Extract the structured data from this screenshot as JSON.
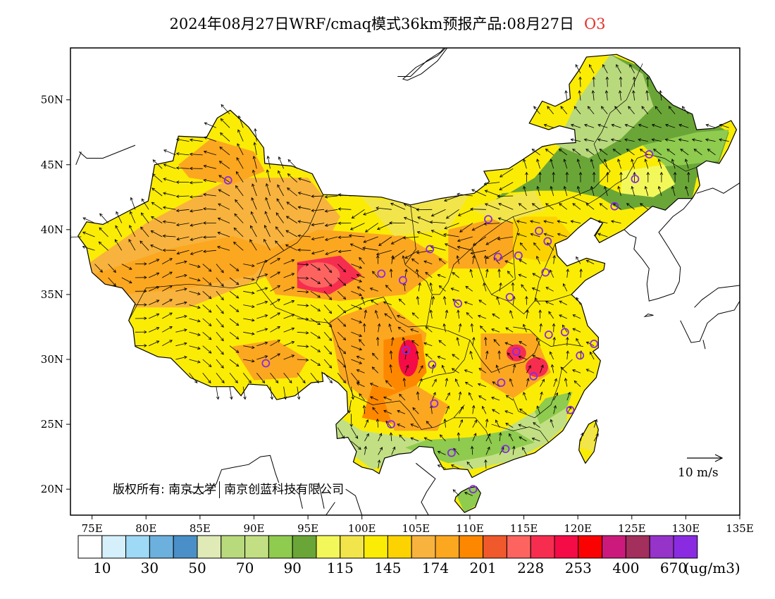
{
  "title": {
    "text": "2024年08月27日WRF/cmaq模式36km预报产品:08月27日",
    "species": "O3",
    "species_color": "#e8302a"
  },
  "map": {
    "lon_ticks": [
      "75E",
      "80E",
      "85E",
      "90E",
      "95E",
      "100E",
      "105E",
      "110E",
      "115E",
      "120E",
      "125E",
      "130E",
      "135E"
    ],
    "lat_ticks": [
      "20N",
      "25N",
      "30N",
      "35N",
      "40N",
      "45N",
      "50N"
    ],
    "lon_range": [
      73,
      135
    ],
    "lat_range": [
      18,
      54
    ]
  },
  "copyright": {
    "label": "版权所有:",
    "org1": "南京大学",
    "org2": "南京创蓝科技有限公司"
  },
  "wind_reference": {
    "label": "10 m/s",
    "speed": 10
  },
  "colorbar": {
    "colors": [
      "#ffffff",
      "#d5effb",
      "#9ed9f5",
      "#6cb0dd",
      "#4a8fc7",
      "#dfeab7",
      "#b9d97d",
      "#c2e083",
      "#8ecb4e",
      "#6aa637",
      "#f3f85a",
      "#f2e54b",
      "#fbec05",
      "#fcd300",
      "#f8b33e",
      "#fca720",
      "#fd8800",
      "#f0592b",
      "#fd6460",
      "#f72d4f",
      "#f50b46",
      "#fa0202",
      "#cb1a7c",
      "#a32f5d",
      "#9633c9",
      "#8a2be2"
    ],
    "labels": [
      "10",
      "30",
      "50",
      "70",
      "90",
      "115",
      "145",
      "174",
      "201",
      "228",
      "253",
      "400",
      "670"
    ],
    "unit": "(ug/m3)"
  },
  "monitoring_sites_color": "#8a2be2",
  "monitoring_sites": [
    {
      "lon": 87.6,
      "lat": 43.8
    },
    {
      "lon": 91.1,
      "lat": 29.7
    },
    {
      "lon": 101.8,
      "lat": 36.6
    },
    {
      "lon": 103.8,
      "lat": 36.1
    },
    {
      "lon": 106.3,
      "lat": 38.5
    },
    {
      "lon": 104.1,
      "lat": 30.7
    },
    {
      "lon": 106.5,
      "lat": 29.6
    },
    {
      "lon": 106.7,
      "lat": 26.6
    },
    {
      "lon": 102.7,
      "lat": 25.0
    },
    {
      "lon": 108.9,
      "lat": 34.3
    },
    {
      "lon": 111.7,
      "lat": 40.8
    },
    {
      "lon": 112.6,
      "lat": 37.9
    },
    {
      "lon": 114.5,
      "lat": 38.0
    },
    {
      "lon": 116.4,
      "lat": 39.9
    },
    {
      "lon": 117.2,
      "lat": 39.1
    },
    {
      "lon": 117.0,
      "lat": 36.7
    },
    {
      "lon": 113.7,
      "lat": 34.8
    },
    {
      "lon": 114.3,
      "lat": 30.6
    },
    {
      "lon": 112.9,
      "lat": 28.2
    },
    {
      "lon": 115.9,
      "lat": 28.7
    },
    {
      "lon": 117.3,
      "lat": 31.9
    },
    {
      "lon": 118.8,
      "lat": 32.1
    },
    {
      "lon": 120.2,
      "lat": 30.3
    },
    {
      "lon": 121.5,
      "lat": 31.2
    },
    {
      "lon": 119.3,
      "lat": 26.1
    },
    {
      "lon": 113.3,
      "lat": 23.1
    },
    {
      "lon": 108.3,
      "lat": 22.8
    },
    {
      "lon": 110.3,
      "lat": 20.0
    },
    {
      "lon": 123.4,
      "lat": 41.8
    },
    {
      "lon": 125.3,
      "lat": 43.9
    },
    {
      "lon": 126.6,
      "lat": 45.8
    }
  ]
}
